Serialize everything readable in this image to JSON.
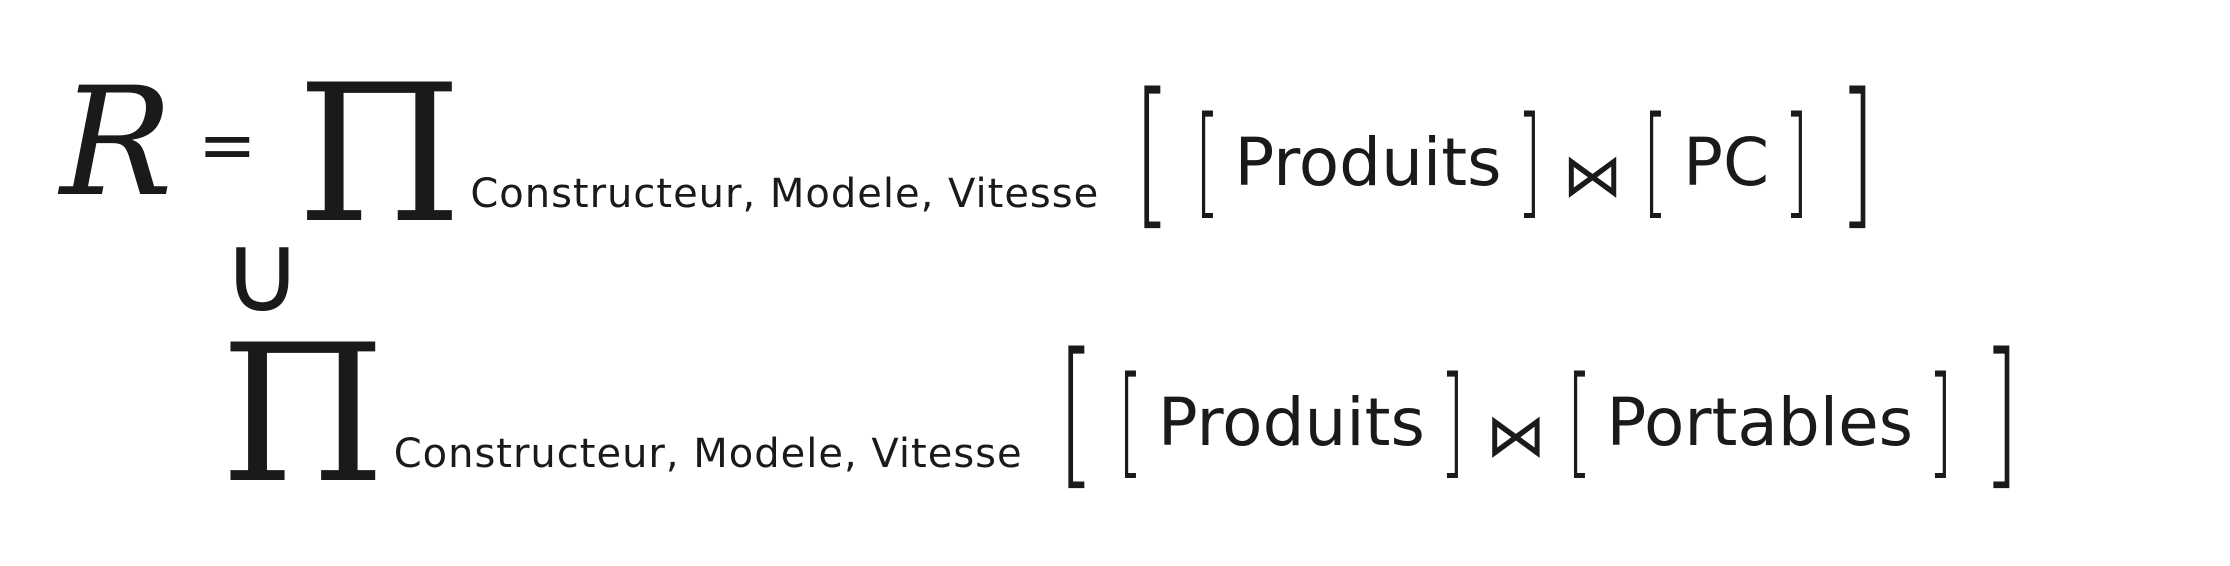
{
  "equation": {
    "lhs": "R",
    "equals": "=",
    "union": "∪",
    "term1": {
      "projection": "Π",
      "attributes": "Constructeur, Modele, Vitesse",
      "bracket_open": "[",
      "bracket_close": "]",
      "relation_a": "Produits",
      "join": "⋈",
      "relation_b": "PC"
    },
    "term2": {
      "projection": "Π",
      "attributes": "Constructeur, Modele, Vitesse",
      "bracket_open": "[",
      "bracket_close": "]",
      "relation_a": "Produits",
      "join": "⋈",
      "relation_b": "Portables"
    }
  }
}
